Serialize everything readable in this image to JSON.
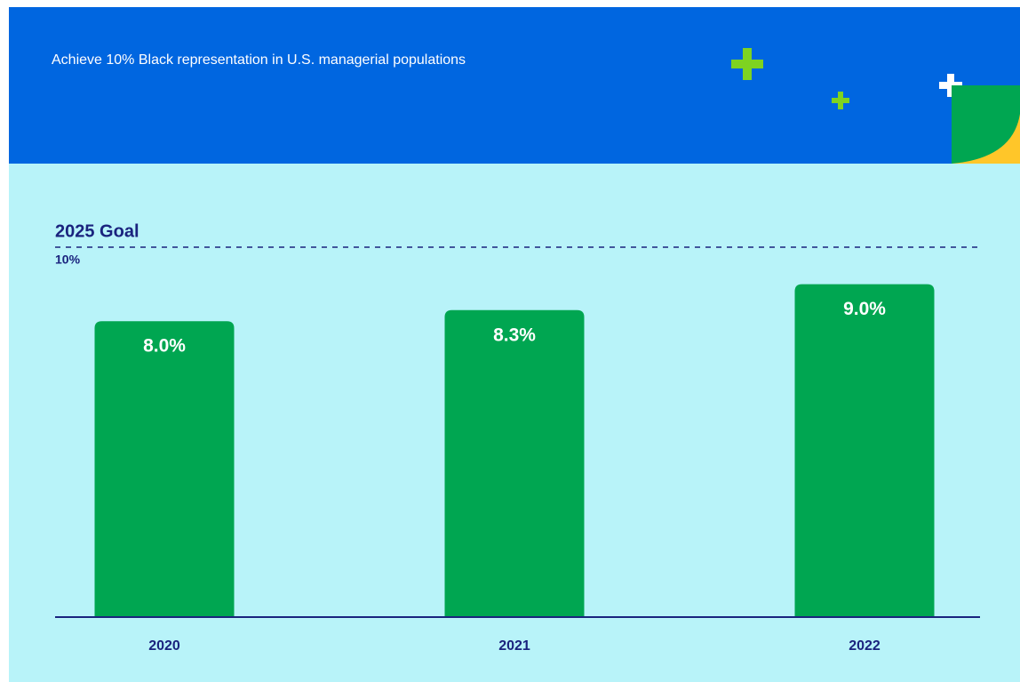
{
  "chart_data": {
    "type": "bar",
    "title": "Achieve 10% Black representation in U.S. managerial populations",
    "categories": [
      "2020",
      "2021",
      "2022"
    ],
    "values": [
      8.0,
      8.3,
      9.0
    ],
    "value_labels": [
      "8.0%",
      "8.3%",
      "9.0%"
    ],
    "color": "#00a651",
    "ylim": [
      0,
      10
    ],
    "goal": {
      "value": 10,
      "label": "10%",
      "text": "2025 Goal"
    }
  }
}
